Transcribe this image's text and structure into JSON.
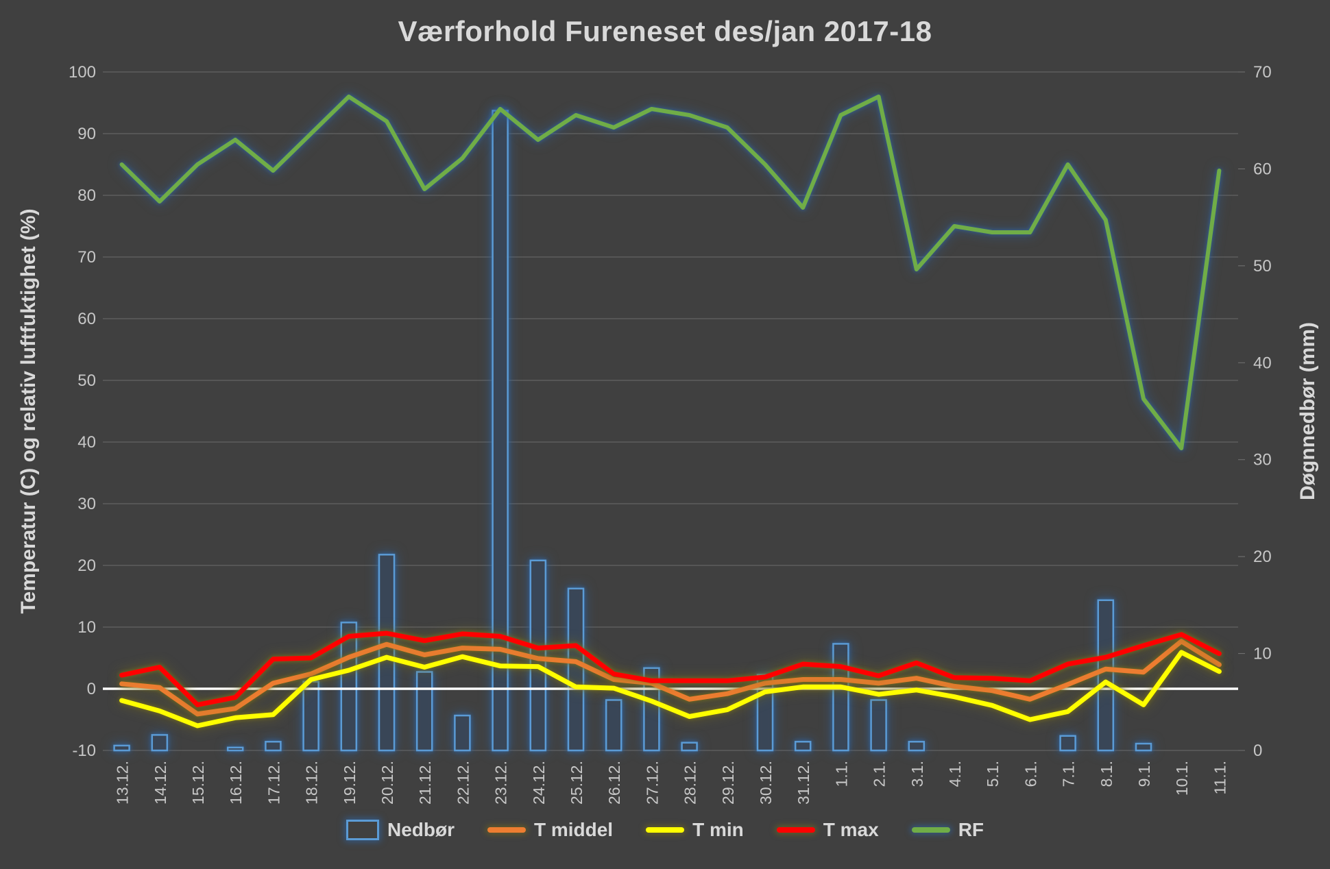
{
  "chart_data": {
    "type": "combo-bar-line",
    "title": "Værforhold Fureneset des/jan 2017-18",
    "background": "#404040",
    "grid": true,
    "legend_position": "bottom",
    "zero_line_color": "#FFFFFF",
    "categories": [
      "13.12.",
      "14.12.",
      "15.12.",
      "16.12.",
      "17.12.",
      "18.12.",
      "19.12.",
      "20.12.",
      "21.12.",
      "22.12.",
      "23.12.",
      "24.12.",
      "25.12.",
      "26.12.",
      "27.12.",
      "28.12.",
      "29.12.",
      "30.12.",
      "31.12.",
      "1.1.",
      "2.1.",
      "3.1.",
      "4.1.",
      "5.1.",
      "6.1.",
      "7.1.",
      "8.1.",
      "9.1.",
      "10.1.",
      "11.1."
    ],
    "left_axis": {
      "title": "Temperatur (C) og relativ luftfuktighet (%)",
      "min": -10,
      "max": 100,
      "step": 10,
      "tick_labels": [
        "100",
        "90",
        "80",
        "70",
        "60",
        "50",
        "40",
        "30",
        "20",
        "10",
        "0",
        "-10"
      ]
    },
    "right_axis": {
      "title": "Døgnnedbør (mm)",
      "min": 0,
      "max": 70,
      "step": 10,
      "tick_labels": [
        "70",
        "60",
        "50",
        "40",
        "30",
        "20",
        "10",
        "0"
      ]
    },
    "series": [
      {
        "name": "Nedbør",
        "kind": "bar",
        "axis": "right",
        "color": "#5B9BD5",
        "glow": "blue",
        "values": [
          0.5,
          1.6,
          0,
          0.3,
          0.9,
          7.1,
          13.2,
          20.2,
          8.1,
          3.6,
          66,
          19.6,
          16.7,
          5.2,
          8.5,
          0.8,
          0,
          7.8,
          0.9,
          11,
          5.2,
          0.9,
          0,
          0,
          0,
          1.5,
          15.5,
          0.7,
          0,
          0
        ]
      },
      {
        "name": "T middel",
        "kind": "line",
        "axis": "left",
        "color": "#ED7D31",
        "glow": "gold",
        "values": [
          0.8,
          0.2,
          -4.1,
          -3.2,
          0.9,
          2.4,
          5.1,
          7.2,
          5.5,
          6.6,
          6.4,
          4.9,
          4.4,
          1.5,
          0.9,
          -1.7,
          -0.8,
          0.9,
          1.5,
          1.5,
          0.9,
          1.7,
          0.4,
          -0.3,
          -1.7,
          0.7,
          3.2,
          2.7,
          7.7,
          3.9
        ]
      },
      {
        "name": "T min",
        "kind": "line",
        "axis": "left",
        "color": "#FFFF00",
        "glow": "gold",
        "values": [
          -1.9,
          -3.6,
          -6,
          -4.7,
          -4.2,
          1.5,
          3,
          5.1,
          3.5,
          5.2,
          3.7,
          3.6,
          0.3,
          0.1,
          -2,
          -4.5,
          -3.4,
          -0.5,
          0.3,
          0.3,
          -0.9,
          -0.2,
          -1.3,
          -2.7,
          -5,
          -3.7,
          1.1,
          -2.6,
          5.9,
          2.8
        ]
      },
      {
        "name": "T max",
        "kind": "line",
        "axis": "left",
        "color": "#FF0000",
        "glow": "gold",
        "values": [
          2.2,
          3.5,
          -2.6,
          -1.4,
          4.8,
          5,
          8.5,
          9,
          7.8,
          8.9,
          8.5,
          6.6,
          7,
          2.4,
          1.3,
          1.3,
          1.3,
          1.9,
          4,
          3.6,
          2.1,
          4.2,
          1.8,
          1.7,
          1.3,
          4,
          5.1,
          7,
          8.8,
          5.7
        ]
      },
      {
        "name": "RF",
        "kind": "line",
        "axis": "left",
        "color": "#70AD47",
        "glow": "blue",
        "values": [
          85,
          79,
          85,
          89,
          84,
          90,
          96,
          92,
          81,
          86,
          94,
          89,
          93,
          91,
          94,
          93,
          91,
          85,
          78,
          93,
          96,
          68,
          75,
          74,
          74,
          85,
          76,
          47,
          39,
          84
        ]
      }
    ]
  }
}
